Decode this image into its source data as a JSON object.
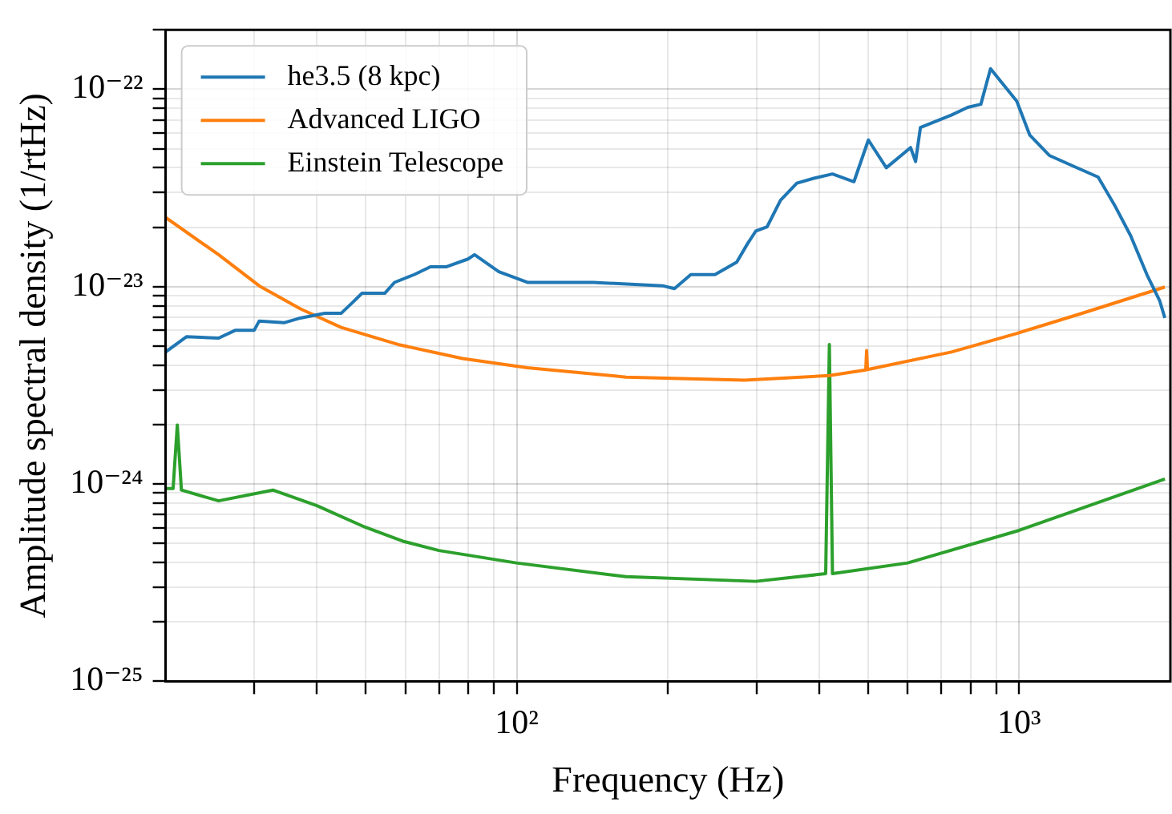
{
  "chart_data": {
    "type": "line",
    "xlabel": "Frequency (Hz)",
    "ylabel": "Amplitude spectral density (1/rtHz)",
    "log": "xy",
    "grid": true,
    "legend": "top left",
    "marker": "none",
    "line_style": "solid",
    "xlim": [
      20,
      2000
    ],
    "ylim": [
      1e-25,
      2e-22
    ],
    "xticks": [
      {
        "value": 30,
        "label": null
      },
      {
        "value": 40,
        "label": null
      },
      {
        "value": 50,
        "label": null
      },
      {
        "value": 60,
        "label": null
      },
      {
        "value": 70,
        "label": null
      },
      {
        "value": 80,
        "label": null
      },
      {
        "value": 90,
        "label": null
      },
      {
        "value": 100,
        "label": "10²"
      },
      {
        "value": 200,
        "label": null
      },
      {
        "value": 300,
        "label": null
      },
      {
        "value": 400,
        "label": null
      },
      {
        "value": 500,
        "label": null
      },
      {
        "value": 600,
        "label": null
      },
      {
        "value": 700,
        "label": null
      },
      {
        "value": 800,
        "label": null
      },
      {
        "value": 900,
        "label": null
      },
      {
        "value": 1000,
        "label": "10³"
      }
    ],
    "yticks": [
      {
        "value": 1e-25,
        "label": "10⁻²⁵"
      },
      {
        "value": 2e-25,
        "label": null
      },
      {
        "value": 3e-25,
        "label": null
      },
      {
        "value": 4e-25,
        "label": null
      },
      {
        "value": 5e-25,
        "label": null
      },
      {
        "value": 6e-25,
        "label": null
      },
      {
        "value": 7e-25,
        "label": null
      },
      {
        "value": 8e-25,
        "label": null
      },
      {
        "value": 9e-25,
        "label": null
      },
      {
        "value": 1e-24,
        "label": "10⁻²⁴"
      },
      {
        "value": 2e-24,
        "label": null
      },
      {
        "value": 3e-24,
        "label": null
      },
      {
        "value": 4e-24,
        "label": null
      },
      {
        "value": 5e-24,
        "label": null
      },
      {
        "value": 6e-24,
        "label": null
      },
      {
        "value": 7e-24,
        "label": null
      },
      {
        "value": 8e-24,
        "label": null
      },
      {
        "value": 9e-24,
        "label": null
      },
      {
        "value": 1e-23,
        "label": "10⁻²³"
      },
      {
        "value": 2e-23,
        "label": null
      },
      {
        "value": 3e-23,
        "label": null
      },
      {
        "value": 4e-23,
        "label": null
      },
      {
        "value": 5e-23,
        "label": null
      },
      {
        "value": 6e-23,
        "label": null
      },
      {
        "value": 7e-23,
        "label": null
      },
      {
        "value": 8e-23,
        "label": null
      },
      {
        "value": 9e-23,
        "label": null
      },
      {
        "value": 1e-22,
        "label": "10⁻²²"
      },
      {
        "value": 2e-22,
        "label": null
      }
    ],
    "series": [
      {
        "name": "he3.5 (8 kpc)",
        "color": "#1f77b4",
        "x": [
          20,
          22,
          25.5,
          27.5,
          30,
          30.7,
          34.4,
          37.1,
          41.5,
          44.7,
          47.1,
          49.2,
          54.6,
          57.1,
          62.5,
          67.3,
          72.5,
          80,
          82.4,
          92.1,
          105,
          114,
          127,
          142,
          195,
          206,
          222,
          248,
          274,
          288,
          299,
          315,
          335,
          361,
          389,
          425,
          469,
          501,
          544,
          608,
          622,
          636,
          733,
          790,
          839,
          877,
          989,
          1050,
          1148,
          1283,
          1436,
          1548,
          1667,
          1796,
          1905,
          1950
        ],
        "values": [
          4.66e-24,
          5.57e-24,
          5.48e-24,
          6e-24,
          6e-24,
          6.68e-24,
          6.56e-24,
          6.93e-24,
          7.32e-24,
          7.32e-24,
          8.3e-24,
          9.25e-24,
          9.25e-24,
          1.05e-23,
          1.15e-23,
          1.26e-23,
          1.26e-23,
          1.38e-23,
          1.45e-23,
          1.19e-23,
          1.05e-23,
          1.05e-23,
          1.05e-23,
          1.05e-23,
          1.01e-23,
          9.77e-24,
          1.15e-23,
          1.15e-23,
          1.33e-23,
          1.65e-23,
          1.91e-23,
          2.01e-23,
          2.74e-23,
          3.34e-23,
          3.53e-23,
          3.72e-23,
          3.4e-23,
          5.53e-23,
          4e-23,
          5.06e-23,
          4.3e-23,
          6.4e-23,
          7.4e-23,
          8.09e-23,
          8.39e-23,
          1.27e-22,
          8.7e-23,
          5.85e-23,
          4.62e-23,
          4.07e-23,
          3.59e-23,
          2.59e-23,
          1.81e-23,
          1.15e-23,
          8.45e-24,
          6.93e-24
        ]
      },
      {
        "name": "Advanced LIGO",
        "color": "#ff7f0e",
        "x": [
          20,
          25.5,
          30.7,
          37.1,
          44.7,
          58,
          78,
          105,
          165,
          284,
          419,
          495,
          497,
          499,
          733,
          987,
          1331,
          1950
        ],
        "values": [
          2.24e-23,
          1.45e-23,
          1.01e-23,
          7.71e-24,
          6.21e-24,
          5.09e-24,
          4.32e-24,
          3.88e-24,
          3.48e-24,
          3.36e-24,
          3.54e-24,
          3.78e-24,
          4.74e-24,
          3.8e-24,
          4.66e-24,
          5.78e-24,
          7.31e-24,
          9.95e-24
        ]
      },
      {
        "name": "Einstein Telescope",
        "color": "#2ca02c",
        "x": [
          20,
          20.7,
          21.1,
          21.5,
          25.5,
          32.7,
          40,
          49.9,
          59.3,
          70,
          99.8,
          165,
          299,
          412,
          419,
          425,
          600,
          1000,
          1950
        ],
        "values": [
          9.49e-25,
          9.49e-25,
          1.99e-24,
          9.31e-25,
          8.21e-25,
          9.31e-25,
          7.76e-25,
          6.04e-25,
          5.13e-25,
          4.6e-25,
          3.98e-25,
          3.39e-25,
          3.21e-25,
          3.51e-25,
          5.09e-24,
          3.51e-25,
          3.98e-25,
          5.82e-25,
          1.06e-24
        ]
      }
    ]
  }
}
